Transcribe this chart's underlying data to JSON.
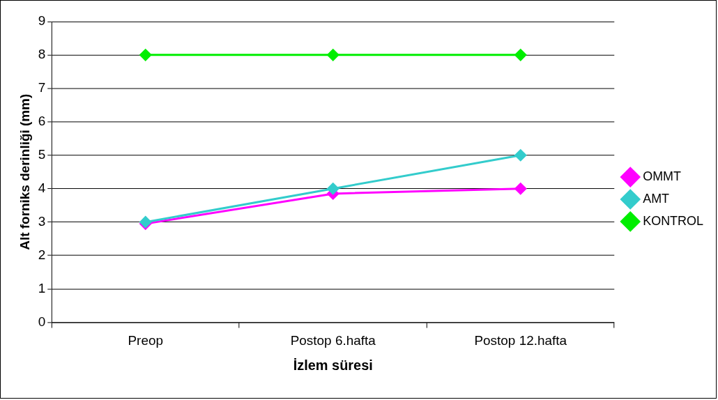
{
  "chart_data": {
    "type": "line",
    "xlabel": "İzlem süresi",
    "ylabel": "Alt forniks derinliği (mm)",
    "categories": [
      "Preop",
      "Postop 6.hafta",
      "Postop 12.hafta"
    ],
    "series": [
      {
        "name": "OMMT",
        "color": "#ff00ff",
        "values": [
          2.95,
          3.85,
          4
        ]
      },
      {
        "name": "AMT",
        "color": "#33cccc",
        "values": [
          3,
          4,
          5
        ]
      },
      {
        "name": "KONTROL",
        "color": "#00ee00",
        "values": [
          8,
          8,
          8
        ]
      }
    ],
    "ylim": [
      0,
      9
    ],
    "yticks": [
      0,
      1,
      2,
      3,
      4,
      5,
      6,
      7,
      8,
      9
    ],
    "grid": "y",
    "legend": "right",
    "marker": "diamond",
    "line_style": "solid"
  }
}
